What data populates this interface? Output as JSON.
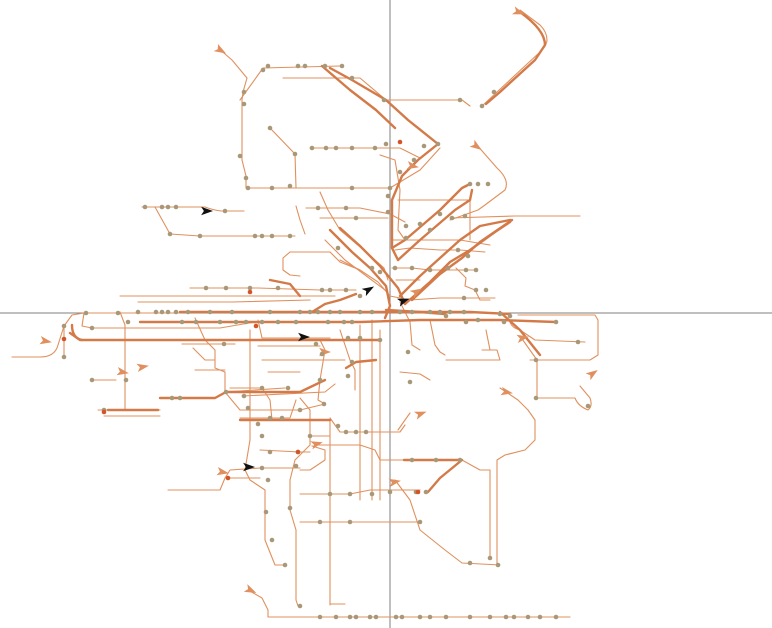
{
  "map": {
    "palette": {
      "route": "#e0905e",
      "route_dark": "#d37a48",
      "stop": "#a89878",
      "stop_active": "#d2552a",
      "vehicle": "#111111",
      "crosshair": "#7f7f7f",
      "background": "#ffffff"
    },
    "icons": {
      "route_marker": "arrowhead-icon",
      "vehicle": "vehicle-arrow-icon",
      "stop": "stop-dot-icon",
      "center": "crosshair-icon"
    }
  }
}
